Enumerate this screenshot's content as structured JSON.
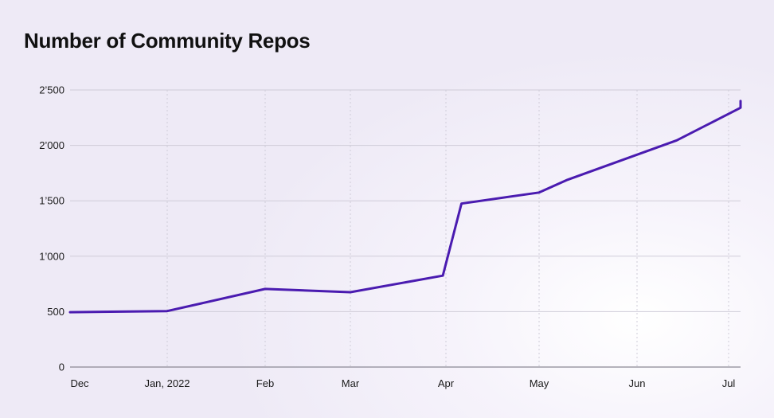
{
  "title": "Number of Community Repos",
  "chart_data": {
    "type": "line",
    "title": "Number of Community Repos",
    "xlabel": "",
    "ylabel": "",
    "ylim": [
      0,
      2500
    ],
    "yticks": [
      0,
      500,
      1000,
      1500,
      2000,
      2500
    ],
    "ytick_labels": [
      "0",
      "500",
      "1’000",
      "1’500",
      "2’000",
      "2’500"
    ],
    "xticks": [
      {
        "label": "Dec",
        "x": "2021-12-01"
      },
      {
        "label": "Jan, 2022",
        "x": "2022-01-01"
      },
      {
        "label": "Feb",
        "x": "2022-02-01"
      },
      {
        "label": "Mar",
        "x": "2022-03-01"
      },
      {
        "label": "Apr",
        "x": "2022-04-01"
      },
      {
        "label": "May",
        "x": "2022-05-01"
      },
      {
        "label": "Jun",
        "x": "2022-06-01"
      },
      {
        "label": "Jul",
        "x": "2022-07-01"
      }
    ],
    "grid": {
      "horizontal": true,
      "vertical": true
    },
    "line_color": "#4a1bb0",
    "series": [
      {
        "name": "",
        "points": [
          {
            "x": "2021-12-01",
            "y": 495
          },
          {
            "x": "2022-01-01",
            "y": 505
          },
          {
            "x": "2022-02-01",
            "y": 705
          },
          {
            "x": "2022-03-01",
            "y": 675
          },
          {
            "x": "2022-03-31",
            "y": 825
          },
          {
            "x": "2022-04-06",
            "y": 1475
          },
          {
            "x": "2022-05-01",
            "y": 1575
          },
          {
            "x": "2022-05-10",
            "y": 1690
          },
          {
            "x": "2022-06-14",
            "y": 2045
          },
          {
            "x": "2022-07-06",
            "y": 2340
          },
          {
            "x": "2022-07-08",
            "y": 2400
          }
        ]
      }
    ]
  }
}
